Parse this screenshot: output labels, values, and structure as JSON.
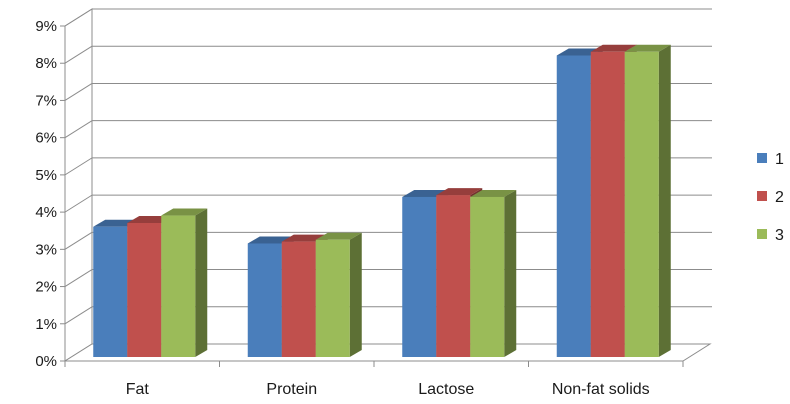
{
  "chart_data": {
    "type": "bar",
    "style": "3d-clustered-column",
    "categories": [
      "Fat",
      "Protein",
      "Lactose",
      "Non-fat solids"
    ],
    "series": [
      {
        "name": "1",
        "color": "#4a7ebb",
        "values": [
          3.5,
          3.05,
          4.3,
          8.1
        ]
      },
      {
        "name": "2",
        "color": "#c0504d",
        "values": [
          3.6,
          3.1,
          4.35,
          8.2
        ]
      },
      {
        "name": "3",
        "color": "#9bbb59",
        "values": [
          3.8,
          3.15,
          4.3,
          8.2
        ]
      }
    ],
    "ylim": [
      0,
      9
    ],
    "y_ticks": [
      "0%",
      "1%",
      "2%",
      "3%",
      "4%",
      "5%",
      "6%",
      "7%",
      "8%",
      "9%"
    ],
    "grid": true,
    "legend_position": "right"
  }
}
